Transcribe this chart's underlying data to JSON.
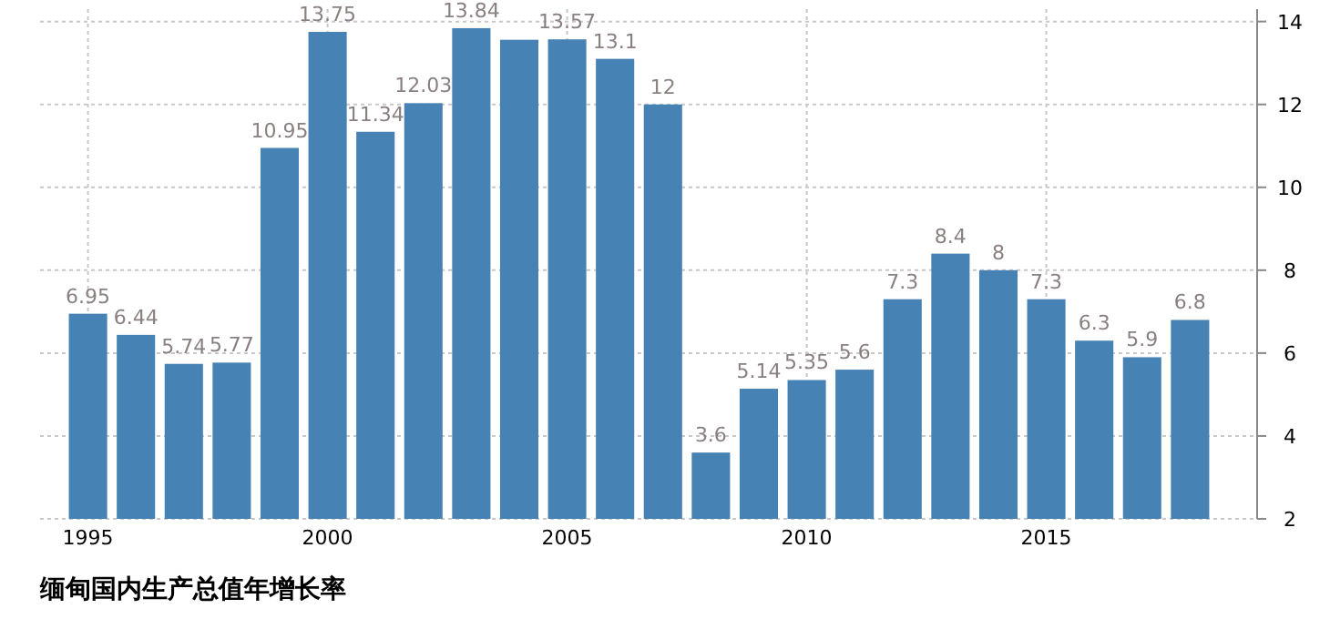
{
  "chart_data": {
    "type": "bar",
    "title": "缅甸国内生产总值年增长率",
    "x": [
      1995,
      1996,
      1997,
      1998,
      1999,
      2000,
      2001,
      2002,
      2003,
      2004,
      2005,
      2006,
      2007,
      2008,
      2009,
      2010,
      2011,
      2012,
      2013,
      2014,
      2015,
      2016,
      2017,
      2018
    ],
    "values": [
      6.95,
      6.44,
      5.74,
      5.77,
      10.95,
      13.75,
      11.34,
      12.03,
      13.84,
      13.56,
      13.57,
      13.1,
      12,
      3.6,
      5.14,
      5.35,
      5.6,
      7.3,
      8.4,
      8,
      7.3,
      6.3,
      5.9,
      6.8
    ],
    "value_labels": [
      "6.95",
      "6.44",
      "5.74",
      "5.77",
      "10.95",
      "13.75",
      "11.34",
      "12.03",
      "13.84",
      null,
      "13.57",
      "13.1",
      "12",
      "3.6",
      "5.14",
      "5.35",
      "5.6",
      "7.3",
      "8.4",
      "8",
      "7.3",
      "6.3",
      "5.9",
      "6.8"
    ],
    "color": "#4682b4",
    "xlim": [
      1994,
      2019.4
    ],
    "xticks": [
      1995,
      2000,
      2005,
      2010,
      2015
    ],
    "ylim": [
      2,
      14.3
    ],
    "yticks": [
      2,
      4,
      6,
      8,
      10,
      12,
      14
    ],
    "grid": true
  }
}
